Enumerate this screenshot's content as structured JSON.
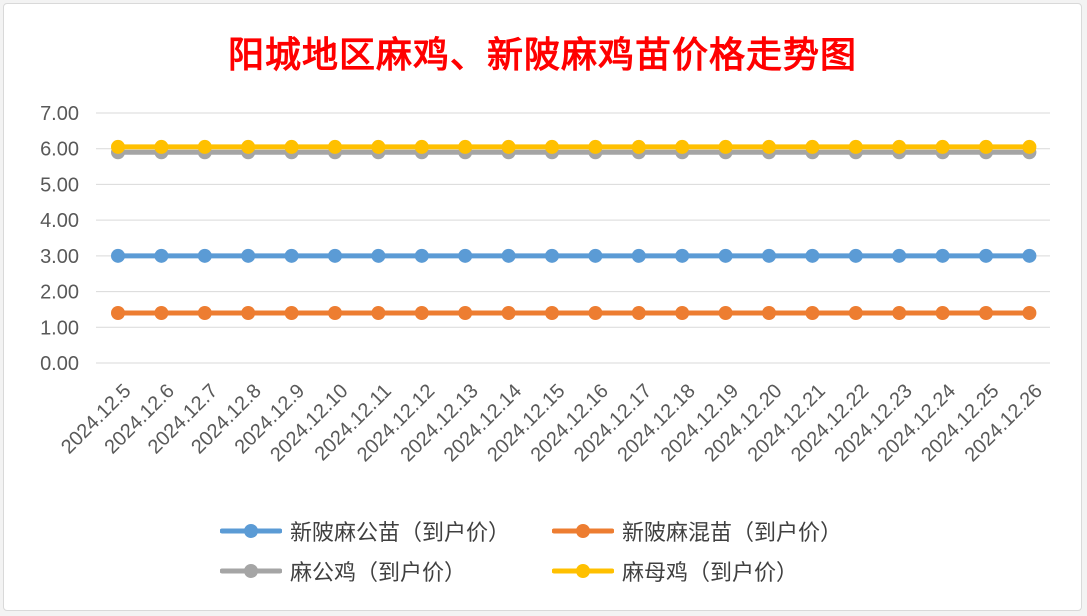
{
  "chart_data": {
    "type": "line",
    "title": "阳城地区麻鸡、新陂麻鸡苗价格走势图",
    "categories": [
      "2024.12.5",
      "2024.12.6",
      "2024.12.7",
      "2024.12.8",
      "2024.12.9",
      "2024.12.10",
      "2024.12.11",
      "2024.12.12",
      "2024.12.13",
      "2024.12.14",
      "2024.12.15",
      "2024.12.16",
      "2024.12.17",
      "2024.12.18",
      "2024.12.19",
      "2024.12.20",
      "2024.12.21",
      "2024.12.22",
      "2024.12.23",
      "2024.12.24",
      "2024.12.25",
      "2024.12.26"
    ],
    "ylim": [
      0,
      7
    ],
    "yticks": [
      "0.00",
      "1.00",
      "2.00",
      "3.00",
      "4.00",
      "5.00",
      "6.00",
      "7.00"
    ],
    "grid": true,
    "legend_position": "bottom",
    "series": [
      {
        "name": "新陂麻公苗（到户价）",
        "color": "#5b9bd5",
        "values": [
          3,
          3,
          3,
          3,
          3,
          3,
          3,
          3,
          3,
          3,
          3,
          3,
          3,
          3,
          3,
          3,
          3,
          3,
          3,
          3,
          3,
          3
        ]
      },
      {
        "name": "新陂麻混苗（到户价）",
        "color": "#ed7d31",
        "values": [
          1.4,
          1.4,
          1.4,
          1.4,
          1.4,
          1.4,
          1.4,
          1.4,
          1.4,
          1.4,
          1.4,
          1.4,
          1.4,
          1.4,
          1.4,
          1.4,
          1.4,
          1.4,
          1.4,
          1.4,
          1.4,
          1.4
        ]
      },
      {
        "name": "麻公鸡（到户价）",
        "color": "#a5a5a5",
        "values": [
          5.9,
          5.9,
          5.9,
          5.9,
          5.9,
          5.9,
          5.9,
          5.9,
          5.9,
          5.9,
          5.9,
          5.9,
          5.9,
          5.9,
          5.9,
          5.9,
          5.9,
          5.9,
          5.9,
          5.9,
          5.9,
          5.9
        ]
      },
      {
        "name": "麻母鸡（到户价）",
        "color": "#ffc000",
        "values": [
          6.05,
          6.05,
          6.05,
          6.05,
          6.05,
          6.05,
          6.05,
          6.05,
          6.05,
          6.05,
          6.05,
          6.05,
          6.05,
          6.05,
          6.05,
          6.05,
          6.05,
          6.05,
          6.05,
          6.05,
          6.05,
          6.05
        ]
      }
    ]
  }
}
